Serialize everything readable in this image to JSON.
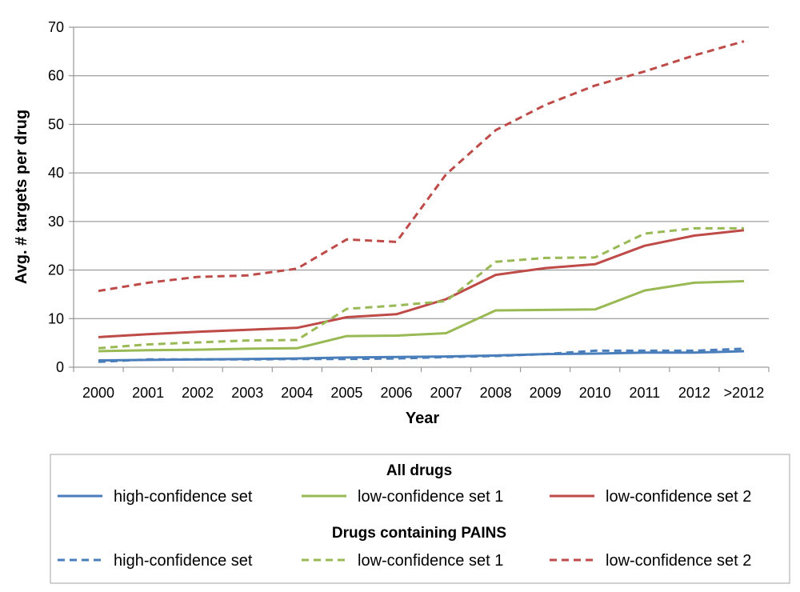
{
  "chart_data": {
    "type": "line",
    "xlabel": "Year",
    "ylabel": "Avg. # targets per drug",
    "categories": [
      "2000",
      "2001",
      "2002",
      "2003",
      "2004",
      "2005",
      "2006",
      "2007",
      "2008",
      "2009",
      "2010",
      "2011",
      "2012",
      ">2012"
    ],
    "ylim": [
      0,
      70
    ],
    "yticks": [
      0,
      10,
      20,
      30,
      40,
      50,
      60,
      70
    ],
    "grid": "horizontal",
    "legend_position": "bottom",
    "groups": [
      {
        "title": "All drugs",
        "series": [
          {
            "name": "high-confidence set",
            "color": "#4a7ebb",
            "dash": "solid",
            "values": [
              1.4,
              1.5,
              1.6,
              1.7,
              1.8,
              2.0,
              2.1,
              2.2,
              2.4,
              2.7,
              2.8,
              3.0,
              3.0,
              3.3
            ]
          },
          {
            "name": "low-confidence set 1",
            "color": "#98b954",
            "dash": "solid",
            "values": [
              3.3,
              3.5,
              3.6,
              3.8,
              3.9,
              6.4,
              6.5,
              7.0,
              11.7,
              11.8,
              11.9,
              15.8,
              17.4,
              17.7
            ]
          },
          {
            "name": "low-confidence set 2",
            "color": "#be4b48",
            "dash": "solid",
            "values": [
              6.2,
              6.8,
              7.3,
              7.7,
              8.1,
              10.3,
              10.9,
              14.0,
              19.0,
              20.4,
              21.2,
              25.0,
              27.1,
              28.2
            ]
          }
        ]
      },
      {
        "title": "Drugs containing PAINS",
        "series": [
          {
            "name": "high-confidence set",
            "color": "#4a7ebb",
            "dash": "dashed",
            "values": [
              1.1,
              1.6,
              1.6,
              1.6,
              1.7,
              1.7,
              1.8,
              2.1,
              2.3,
              2.7,
              3.4,
              3.4,
              3.4,
              3.8
            ]
          },
          {
            "name": "low-confidence set 1",
            "color": "#98b954",
            "dash": "dashed",
            "values": [
              3.9,
              4.7,
              5.1,
              5.5,
              5.6,
              12.0,
              12.7,
              13.6,
              21.7,
              22.5,
              22.6,
              27.5,
              28.6,
              28.6
            ]
          },
          {
            "name": "low-confidence set 2",
            "color": "#be4b48",
            "dash": "dashed",
            "values": [
              15.7,
              17.4,
              18.6,
              18.9,
              20.3,
              26.3,
              25.8,
              39.7,
              48.8,
              54.0,
              58.0,
              60.9,
              64.2,
              67.1
            ]
          }
        ]
      }
    ]
  }
}
